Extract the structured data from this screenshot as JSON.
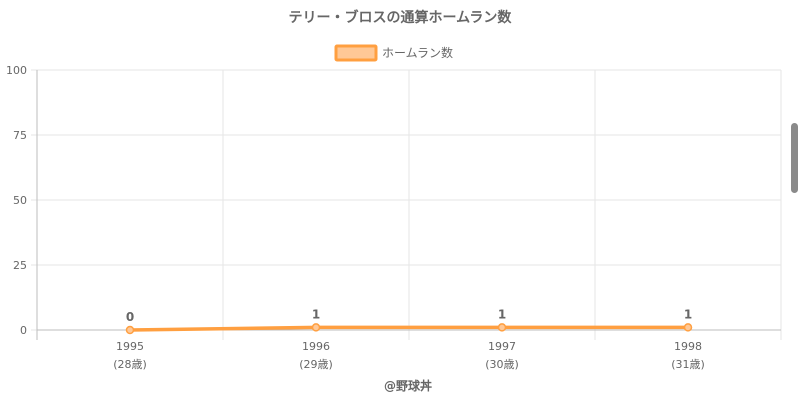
{
  "chart_data": {
    "type": "line",
    "title": "テリー・ブロスの通算ホームラン数",
    "categories": [
      "1995",
      "1996",
      "1997",
      "1998"
    ],
    "category_sublabels": [
      "(28歳)",
      "(29歳)",
      "(30歳)",
      "(31歳)"
    ],
    "series": [
      {
        "name": "ホームラン数",
        "values": [
          0,
          1,
          1,
          1
        ],
        "color": "#ff9f40",
        "fill_color": "#ffc896"
      }
    ],
    "ylim": [
      0,
      100
    ],
    "yticks": [
      "0",
      "25",
      "50",
      "75",
      "100"
    ],
    "grid": true,
    "legend_position": "top-center",
    "credit": "@野球丼"
  },
  "colors": {
    "grid": "#e6e6e6",
    "axis": "#bdbdbd",
    "text": "#666666",
    "scrollbar": "#8a8a8a"
  }
}
